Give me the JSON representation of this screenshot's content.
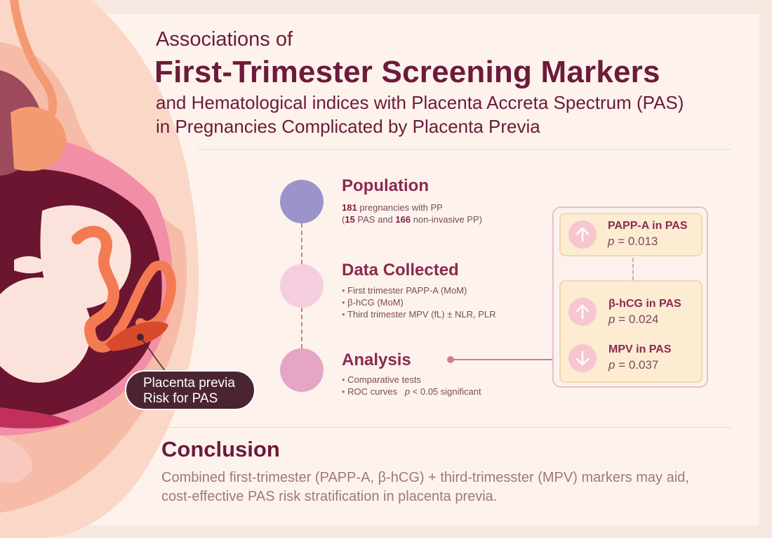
{
  "title": {
    "line1": "Associations of",
    "line2": "First-Trimester Screening Markers",
    "line3": "and Hematological indices with Placenta Accreta Spectrum (PAS)",
    "line4": "in Pregnancies Complicated by Placenta Previa"
  },
  "illustration": {
    "callout": [
      "Placenta previa",
      "Risk for PAS"
    ]
  },
  "sections": {
    "population": {
      "title": "Population",
      "line1_bold": "181",
      "line1_rest": " pregnancies with PP",
      "line2_open": "(",
      "line2_bold1": "15",
      "line2_mid": " PAS and ",
      "line2_bold2": "166",
      "line2_rest": " non-invasive PP)",
      "color": "#9b93c9"
    },
    "data_collected": {
      "title": "Data Collected",
      "items": [
        "First trimester PAPP-A (MoM)",
        "β-hCG (MoM)",
        "Third trimester MPV (fL) ± NLR, PLR"
      ],
      "color": "#f4cede"
    },
    "analysis": {
      "title": "Analysis",
      "item1": "Comparative tests",
      "item2_text": "ROC curves",
      "item2_p": "p",
      "item2_rest": " < 0.05 significant",
      "color": "#e4a6c4"
    }
  },
  "markers": [
    {
      "name": "PAPP-A in PAS",
      "p_label": "p",
      "p_rest": " = 0.013",
      "direction": "up",
      "icon": "arrow-up-icon"
    },
    {
      "name": "β-hCG in PAS",
      "p_label": "p",
      "p_rest": " = 0.024",
      "direction": "up",
      "icon": "arrow-up-icon"
    },
    {
      "name": "MPV in PAS",
      "p_label": "p",
      "p_rest": " = 0.037",
      "direction": "down",
      "icon": "arrow-down-icon"
    }
  ],
  "conclusion": {
    "title": "Conclusion",
    "line1": "Combined first-trimester (PAPP-A, β-hCG) + third-trimesster (MPV) markers may aid,",
    "line2": "cost-effective PAS risk stratification in placenta previa."
  },
  "colors": {
    "title": "#6d1a3c",
    "accent": "#8a2a50",
    "connector": "#d47896",
    "marker_box": "#fcecd2"
  }
}
